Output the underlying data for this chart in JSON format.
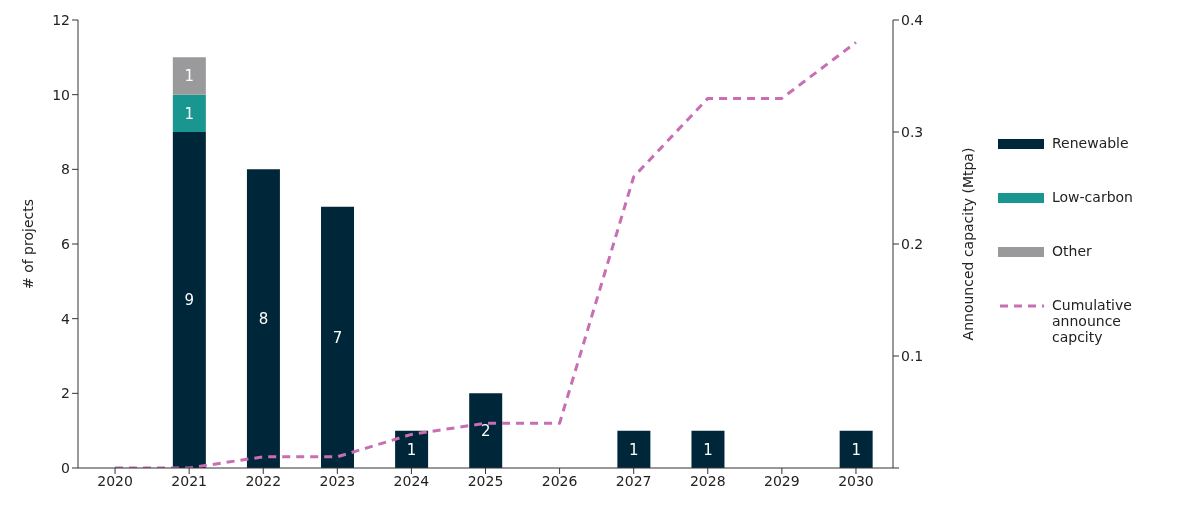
{
  "chart_data": {
    "type": "bar",
    "stacked": true,
    "categories": [
      "2020",
      "2021",
      "2022",
      "2023",
      "2024",
      "2025",
      "2026",
      "2027",
      "2028",
      "2029",
      "2030"
    ],
    "series": [
      {
        "name": "Renewable",
        "color": "#00263a",
        "values": [
          null,
          9,
          8,
          7,
          1,
          2,
          null,
          1,
          1,
          null,
          1
        ],
        "value_labels": [
          null,
          "9",
          "8",
          "7",
          "1",
          "2",
          null,
          "1",
          "1",
          null,
          "1"
        ]
      },
      {
        "name": "Low-carbon",
        "color": "#1a9690",
        "values": [
          null,
          1,
          null,
          null,
          null,
          null,
          null,
          null,
          null,
          null,
          null
        ],
        "value_labels": [
          null,
          "1",
          null,
          null,
          null,
          null,
          null,
          null,
          null,
          null,
          null
        ]
      },
      {
        "name": "Other",
        "color": "#9a9a9c",
        "values": [
          null,
          1,
          null,
          null,
          null,
          null,
          null,
          null,
          null,
          null,
          null
        ],
        "value_labels": [
          null,
          "1",
          null,
          null,
          null,
          null,
          null,
          null,
          null,
          null,
          null
        ]
      },
      {
        "name": "Cumulative announce capcity",
        "type": "line",
        "axis": "y2",
        "color": "#c86eb4",
        "line_style": "dashed",
        "marker": "none",
        "values": [
          0,
          0,
          0.01,
          0.01,
          0.03,
          0.04,
          0.04,
          0.26,
          0.33,
          0.33,
          0.38
        ]
      }
    ],
    "ylabel": "# of projects",
    "y2label": "Announced capacity (Mtpa)",
    "ylim": [
      0,
      12
    ],
    "yticks": [
      0,
      2,
      4,
      6,
      8,
      10,
      12
    ],
    "y2lim": [
      0,
      0.4
    ],
    "y2ticks": [
      {
        "value": 0,
        "label": null
      },
      0.1,
      0.2,
      0.3,
      0.4
    ],
    "legend": "right"
  }
}
